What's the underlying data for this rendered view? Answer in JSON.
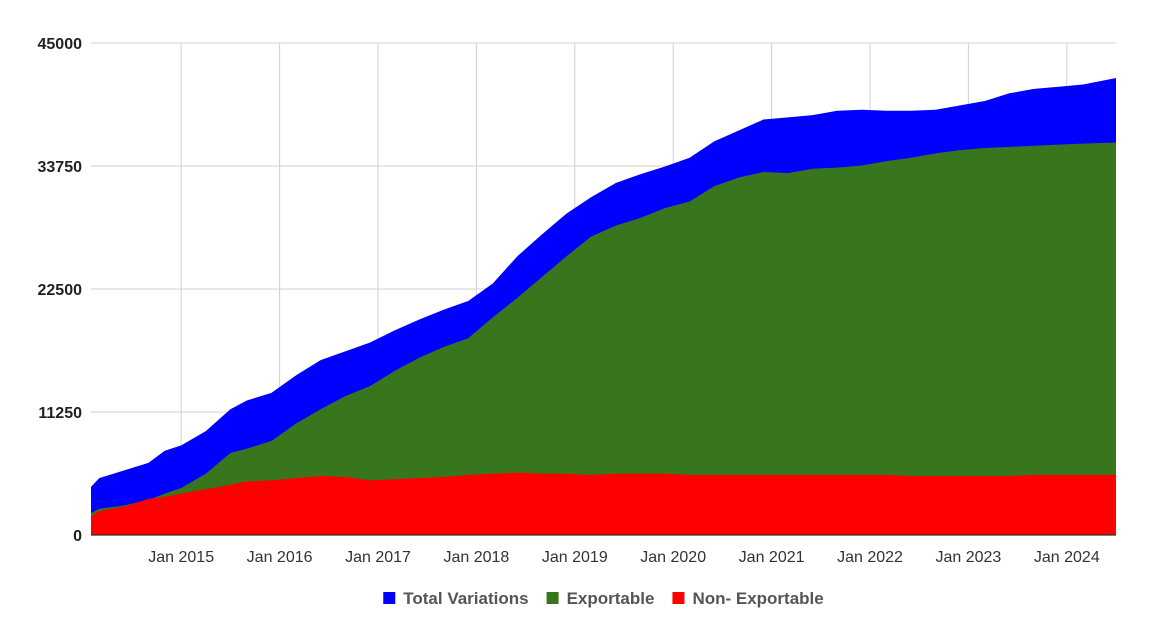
{
  "chart_data": {
    "type": "area",
    "stacked": false,
    "title": "",
    "xlabel": "",
    "ylabel": "",
    "ylim": [
      0,
      45000
    ],
    "y_ticks": [
      "0",
      "11250",
      "22500",
      "33750",
      "45000"
    ],
    "x_tick_labels": [
      "Jan 2015",
      "Jan 2016",
      "Jan 2017",
      "Jan 2018",
      "Jan 2019",
      "Jan 2020",
      "Jan 2021",
      "Jan 2022",
      "Jan 2023",
      "Jan 2024"
    ],
    "x_range": [
      "2014-02",
      "2024-07"
    ],
    "grid": true,
    "legend_position": "bottom",
    "x": [
      "2014-02",
      "2014-03",
      "2014-06",
      "2014-09",
      "2014-11",
      "2015-01",
      "2015-04",
      "2015-07",
      "2015-09",
      "2015-12",
      "2016-03",
      "2016-06",
      "2016-09",
      "2016-12",
      "2017-03",
      "2017-06",
      "2017-09",
      "2017-12",
      "2018-03",
      "2018-06",
      "2018-09",
      "2018-12",
      "2019-03",
      "2019-06",
      "2019-09",
      "2019-12",
      "2020-03",
      "2020-06",
      "2020-09",
      "2020-12",
      "2021-03",
      "2021-06",
      "2021-09",
      "2021-12",
      "2022-03",
      "2022-06",
      "2022-09",
      "2022-12",
      "2023-03",
      "2023-06",
      "2023-09",
      "2023-12",
      "2024-03",
      "2024-07"
    ],
    "series": [
      {
        "name": "Total Variations",
        "color": "#0000ff",
        "values": [
          4400,
          5200,
          5900,
          6600,
          7700,
          8200,
          9500,
          11500,
          12300,
          13000,
          14600,
          16000,
          16800,
          17600,
          18700,
          19700,
          20600,
          21400,
          23000,
          25500,
          27500,
          29400,
          30900,
          32200,
          33000,
          33700,
          34500,
          36000,
          37000,
          38000,
          38200,
          38400,
          38800,
          38900,
          38800,
          38800,
          38900,
          39300,
          39700,
          40400,
          40800,
          41000,
          41200,
          41800
        ]
      },
      {
        "name": "Exportable",
        "color": "#38761d",
        "values": [
          2000,
          2400,
          2700,
          3200,
          3800,
          4300,
          5600,
          7500,
          7900,
          8600,
          10200,
          11500,
          12700,
          13600,
          15000,
          16200,
          17200,
          18000,
          19900,
          21700,
          23600,
          25500,
          27300,
          28300,
          29000,
          29900,
          30500,
          31900,
          32700,
          33200,
          33100,
          33500,
          33600,
          33800,
          34200,
          34500,
          34900,
          35200,
          35400,
          35500,
          35600,
          35700,
          35800,
          35900
        ]
      },
      {
        "name": "Non- Exportable",
        "color": "#ff0000",
        "values": [
          1700,
          2200,
          2600,
          3300,
          3500,
          3800,
          4200,
          4600,
          4900,
          5000,
          5200,
          5400,
          5300,
          5000,
          5100,
          5200,
          5300,
          5500,
          5600,
          5700,
          5600,
          5600,
          5500,
          5600,
          5600,
          5600,
          5500,
          5500,
          5500,
          5500,
          5500,
          5500,
          5500,
          5500,
          5500,
          5400,
          5400,
          5400,
          5400,
          5400,
          5500,
          5500,
          5500,
          5500
        ]
      }
    ]
  }
}
